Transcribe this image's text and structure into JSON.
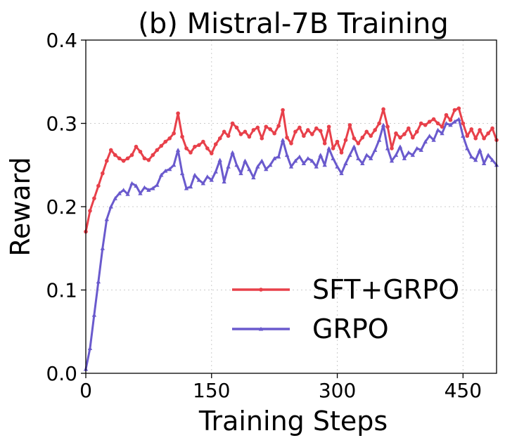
{
  "chart_data": {
    "type": "line",
    "title": "(b) Mistral-7B Training",
    "xlabel": "Training Steps",
    "ylabel": "Reward",
    "xlim": [
      0,
      490
    ],
    "ylim": [
      0.0,
      0.4
    ],
    "xticks": [
      0,
      150,
      300,
      450
    ],
    "xtick_labels": [
      "0",
      "150",
      "300",
      "450"
    ],
    "yticks": [
      0.0,
      0.1,
      0.2,
      0.3,
      0.4
    ],
    "ytick_labels": [
      "0.0",
      "0.1",
      "0.2",
      "0.3",
      "0.4"
    ],
    "grid": true,
    "legend_position": "lower-right",
    "series": [
      {
        "name": "SFT+GRPO",
        "color": "#e8404a",
        "marker": "circle",
        "points": [
          [
            0,
            0.17
          ],
          [
            5,
            0.195
          ],
          [
            10,
            0.21
          ],
          [
            15,
            0.225
          ],
          [
            20,
            0.24
          ],
          [
            25,
            0.255
          ],
          [
            30,
            0.268
          ],
          [
            35,
            0.262
          ],
          [
            40,
            0.258
          ],
          [
            45,
            0.255
          ],
          [
            50,
            0.258
          ],
          [
            55,
            0.262
          ],
          [
            60,
            0.272
          ],
          [
            65,
            0.266
          ],
          [
            70,
            0.258
          ],
          [
            75,
            0.256
          ],
          [
            80,
            0.262
          ],
          [
            85,
            0.268
          ],
          [
            90,
            0.273
          ],
          [
            95,
            0.278
          ],
          [
            100,
            0.282
          ],
          [
            105,
            0.288
          ],
          [
            110,
            0.312
          ],
          [
            115,
            0.284
          ],
          [
            120,
            0.27
          ],
          [
            125,
            0.265
          ],
          [
            130,
            0.272
          ],
          [
            135,
            0.274
          ],
          [
            140,
            0.278
          ],
          [
            145,
            0.27
          ],
          [
            150,
            0.264
          ],
          [
            155,
            0.275
          ],
          [
            160,
            0.282
          ],
          [
            165,
            0.29
          ],
          [
            170,
            0.285
          ],
          [
            175,
            0.3
          ],
          [
            180,
            0.295
          ],
          [
            185,
            0.287
          ],
          [
            190,
            0.29
          ],
          [
            195,
            0.284
          ],
          [
            200,
            0.292
          ],
          [
            205,
            0.295
          ],
          [
            210,
            0.282
          ],
          [
            215,
            0.296
          ],
          [
            220,
            0.293
          ],
          [
            225,
            0.288
          ],
          [
            230,
            0.297
          ],
          [
            235,
            0.316
          ],
          [
            240,
            0.283
          ],
          [
            245,
            0.276
          ],
          [
            250,
            0.29
          ],
          [
            255,
            0.295
          ],
          [
            260,
            0.285
          ],
          [
            265,
            0.292
          ],
          [
            270,
            0.287
          ],
          [
            275,
            0.294
          ],
          [
            280,
            0.291
          ],
          [
            285,
            0.276
          ],
          [
            290,
            0.296
          ],
          [
            295,
            0.27
          ],
          [
            300,
            0.278
          ],
          [
            305,
            0.265
          ],
          [
            310,
            0.28
          ],
          [
            315,
            0.298
          ],
          [
            320,
            0.282
          ],
          [
            325,
            0.276
          ],
          [
            330,
            0.283
          ],
          [
            335,
            0.29
          ],
          [
            340,
            0.285
          ],
          [
            345,
            0.292
          ],
          [
            350,
            0.3
          ],
          [
            355,
            0.317
          ],
          [
            360,
            0.296
          ],
          [
            365,
            0.27
          ],
          [
            370,
            0.288
          ],
          [
            375,
            0.283
          ],
          [
            380,
            0.287
          ],
          [
            385,
            0.294
          ],
          [
            390,
            0.283
          ],
          [
            395,
            0.29
          ],
          [
            400,
            0.3
          ],
          [
            405,
            0.298
          ],
          [
            410,
            0.302
          ],
          [
            415,
            0.305
          ],
          [
            420,
            0.3
          ],
          [
            425,
            0.296
          ],
          [
            430,
            0.31
          ],
          [
            435,
            0.304
          ],
          [
            440,
            0.316
          ],
          [
            445,
            0.318
          ],
          [
            450,
            0.3
          ],
          [
            455,
            0.285
          ],
          [
            460,
            0.293
          ],
          [
            465,
            0.282
          ],
          [
            470,
            0.292
          ],
          [
            475,
            0.282
          ],
          [
            480,
            0.288
          ],
          [
            485,
            0.294
          ],
          [
            490,
            0.28
          ]
        ]
      },
      {
        "name": "GRPO",
        "color": "#6a5acd",
        "marker": "triangle",
        "points": [
          [
            0,
            0.005
          ],
          [
            5,
            0.03
          ],
          [
            10,
            0.07
          ],
          [
            15,
            0.11
          ],
          [
            20,
            0.15
          ],
          [
            25,
            0.185
          ],
          [
            30,
            0.2
          ],
          [
            35,
            0.21
          ],
          [
            40,
            0.216
          ],
          [
            45,
            0.22
          ],
          [
            50,
            0.215
          ],
          [
            55,
            0.228
          ],
          [
            60,
            0.225
          ],
          [
            65,
            0.216
          ],
          [
            70,
            0.223
          ],
          [
            75,
            0.22
          ],
          [
            80,
            0.222
          ],
          [
            85,
            0.226
          ],
          [
            90,
            0.238
          ],
          [
            95,
            0.243
          ],
          [
            100,
            0.245
          ],
          [
            105,
            0.25
          ],
          [
            110,
            0.268
          ],
          [
            115,
            0.24
          ],
          [
            120,
            0.222
          ],
          [
            125,
            0.224
          ],
          [
            130,
            0.238
          ],
          [
            135,
            0.232
          ],
          [
            140,
            0.228
          ],
          [
            145,
            0.236
          ],
          [
            150,
            0.232
          ],
          [
            155,
            0.242
          ],
          [
            160,
            0.256
          ],
          [
            165,
            0.23
          ],
          [
            170,
            0.248
          ],
          [
            175,
            0.265
          ],
          [
            180,
            0.25
          ],
          [
            185,
            0.24
          ],
          [
            190,
            0.255
          ],
          [
            195,
            0.245
          ],
          [
            200,
            0.235
          ],
          [
            205,
            0.248
          ],
          [
            210,
            0.255
          ],
          [
            215,
            0.245
          ],
          [
            220,
            0.25
          ],
          [
            225,
            0.258
          ],
          [
            230,
            0.26
          ],
          [
            235,
            0.28
          ],
          [
            240,
            0.262
          ],
          [
            245,
            0.248
          ],
          [
            250,
            0.255
          ],
          [
            255,
            0.26
          ],
          [
            260,
            0.252
          ],
          [
            265,
            0.258
          ],
          [
            270,
            0.255
          ],
          [
            275,
            0.248
          ],
          [
            280,
            0.262
          ],
          [
            285,
            0.25
          ],
          [
            290,
            0.27
          ],
          [
            295,
            0.258
          ],
          [
            300,
            0.248
          ],
          [
            305,
            0.24
          ],
          [
            310,
            0.252
          ],
          [
            315,
            0.262
          ],
          [
            320,
            0.272
          ],
          [
            325,
            0.258
          ],
          [
            330,
            0.252
          ],
          [
            335,
            0.262
          ],
          [
            340,
            0.258
          ],
          [
            345,
            0.268
          ],
          [
            350,
            0.28
          ],
          [
            355,
            0.298
          ],
          [
            360,
            0.27
          ],
          [
            365,
            0.255
          ],
          [
            370,
            0.262
          ],
          [
            375,
            0.272
          ],
          [
            380,
            0.258
          ],
          [
            385,
            0.265
          ],
          [
            390,
            0.262
          ],
          [
            395,
            0.27
          ],
          [
            400,
            0.268
          ],
          [
            405,
            0.278
          ],
          [
            410,
            0.285
          ],
          [
            415,
            0.28
          ],
          [
            420,
            0.292
          ],
          [
            425,
            0.288
          ],
          [
            430,
            0.3
          ],
          [
            435,
            0.298
          ],
          [
            440,
            0.302
          ],
          [
            445,
            0.305
          ],
          [
            450,
            0.285
          ],
          [
            455,
            0.27
          ],
          [
            460,
            0.26
          ],
          [
            465,
            0.256
          ],
          [
            470,
            0.268
          ],
          [
            475,
            0.252
          ],
          [
            480,
            0.262
          ],
          [
            485,
            0.256
          ],
          [
            490,
            0.25
          ]
        ]
      }
    ]
  }
}
